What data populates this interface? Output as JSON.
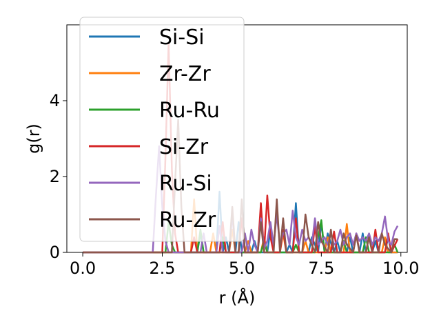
{
  "chart_data": {
    "type": "line",
    "xlabel": "r (Å)",
    "ylabel": "g(r)",
    "xlim": [
      -0.5,
      10.2
    ],
    "ylim": [
      0,
      6.0
    ],
    "xticks": [
      "0.0",
      "2.5",
      "5.0",
      "7.5",
      "10.0"
    ],
    "yticks": [
      "0",
      "2",
      "4"
    ],
    "legend_position": "upper-left",
    "grid": false,
    "series": [
      {
        "name": "Si-Si",
        "color": "#1f77b4",
        "x": [
          0,
          2.3,
          2.4,
          3.6,
          3.7,
          3.8,
          4.2,
          4.3,
          4.4,
          4.5,
          4.6,
          4.8,
          4.9,
          5.0,
          5.3,
          5.4,
          5.5,
          5.8,
          5.9,
          6.0,
          6.4,
          6.5,
          6.6,
          6.7,
          6.8,
          7.1,
          7.2,
          7.4,
          7.5,
          7.6,
          7.7,
          7.9,
          8.0,
          8.1,
          8.3,
          8.4,
          8.5,
          8.7,
          8.8,
          8.9,
          9.1,
          9.2,
          9.3,
          9.5,
          9.6,
          9.7,
          9.9
        ],
        "y": [
          0,
          0,
          0,
          0,
          0.5,
          0,
          0,
          1.6,
          0,
          0.4,
          0,
          0,
          0.8,
          0,
          0,
          0.3,
          0,
          0,
          0.6,
          0,
          0,
          0.2,
          0,
          1.3,
          0,
          0,
          0.4,
          0,
          0.8,
          0,
          0.5,
          0,
          0.3,
          0,
          0,
          0.4,
          0,
          0,
          0.5,
          0,
          0,
          0.3,
          0,
          0,
          0.4,
          0,
          0
        ]
      },
      {
        "name": "Zr-Zr",
        "color": "#ff7f0e",
        "x": [
          0,
          3.4,
          3.5,
          3.6,
          4.0,
          4.1,
          4.2,
          4.6,
          4.7,
          4.8,
          5.1,
          5.2,
          5.3,
          5.6,
          5.7,
          5.8,
          6.2,
          6.3,
          6.4,
          6.9,
          7.0,
          7.1,
          7.6,
          7.7,
          7.8,
          8.2,
          8.3,
          8.4,
          8.9,
          9.0,
          9.1,
          9.4,
          9.5,
          9.6,
          9.9
        ],
        "y": [
          0,
          0,
          1.4,
          0,
          0,
          0.5,
          0,
          0,
          0.6,
          0,
          0,
          0.3,
          0,
          0,
          0.4,
          0,
          0,
          0.5,
          0,
          0,
          0.3,
          0,
          0,
          0.4,
          0,
          0,
          0.75,
          0,
          0,
          0.45,
          0,
          0,
          0.4,
          0,
          0
        ]
      },
      {
        "name": "Ru-Ru",
        "color": "#2ca02c",
        "x": [
          0,
          2.6,
          2.7,
          2.8,
          2.9,
          3.6,
          3.7,
          3.8,
          4.3,
          4.4,
          4.5,
          5.6,
          5.7,
          5.8,
          6.6,
          6.7,
          6.8,
          7.3,
          7.4,
          7.5,
          7.6,
          8.1,
          8.2,
          8.3,
          8.8,
          8.9,
          9.0,
          9.7,
          9.8,
          9.9
        ],
        "y": [
          0,
          0,
          0.8,
          0.2,
          0,
          0,
          0.6,
          0,
          0,
          0.4,
          0,
          0,
          0.3,
          0,
          0,
          0.2,
          0,
          0,
          0.4,
          0.85,
          0,
          0,
          0.3,
          0,
          0,
          0.4,
          0,
          0,
          0.2,
          0
        ]
      },
      {
        "name": "Si-Zr",
        "color": "#d62728",
        "x": [
          0,
          2.5,
          2.6,
          2.7,
          2.8,
          2.9,
          3.0,
          3.4,
          3.5,
          3.6,
          4.3,
          4.4,
          4.5,
          4.9,
          5.0,
          5.1,
          5.5,
          5.6,
          5.7,
          5.8,
          5.9,
          6.0,
          6.2,
          6.3,
          6.4,
          6.6,
          6.7,
          6.8,
          7.2,
          7.3,
          7.4,
          7.8,
          7.9,
          8.0,
          8.5,
          8.6,
          8.7,
          9.1,
          9.2,
          9.3,
          9.5,
          9.6,
          9.7,
          9.9
        ],
        "y": [
          0,
          0,
          2.5,
          5.5,
          2.2,
          0.5,
          0,
          0,
          0.4,
          0,
          0,
          0.8,
          0,
          0,
          0.9,
          0,
          0,
          1.3,
          0,
          1.5,
          0.4,
          0,
          0,
          0.6,
          0,
          0,
          0.9,
          0,
          0,
          0.7,
          0,
          0,
          0.55,
          0,
          0,
          0.5,
          0,
          0,
          0.6,
          0,
          0,
          0.5,
          0,
          0.35
        ]
      },
      {
        "name": "Ru-Si",
        "color": "#9467bd",
        "x": [
          0,
          2.2,
          2.3,
          2.4,
          2.5,
          2.6,
          2.7,
          3.7,
          3.8,
          3.9,
          4.2,
          4.3,
          4.4,
          4.6,
          4.7,
          4.8,
          5.0,
          5.1,
          5.2,
          5.3,
          5.4,
          5.5,
          5.6,
          5.7,
          5.8,
          5.9,
          6.0,
          6.1,
          6.2,
          6.3,
          6.4,
          6.5,
          6.6,
          6.7,
          6.8,
          6.9,
          7.0,
          7.1,
          7.2,
          7.3,
          7.4,
          7.5,
          7.6,
          7.7,
          7.8,
          7.9,
          8.0,
          8.1,
          8.2,
          8.3,
          8.4,
          8.5,
          8.6,
          8.7,
          8.8,
          8.9,
          9.0,
          9.1,
          9.2,
          9.3,
          9.4,
          9.5,
          9.6,
          9.7,
          9.8,
          9.9
        ],
        "y": [
          0,
          0,
          1.5,
          2.8,
          1.2,
          0.3,
          0,
          0,
          0.5,
          0,
          0,
          0.7,
          0,
          0,
          1.0,
          0,
          0,
          0.5,
          0,
          0.6,
          0.2,
          0,
          0.9,
          0.1,
          0.3,
          0.8,
          0.2,
          1.0,
          0.2,
          0.5,
          0.6,
          0.2,
          1.1,
          0.4,
          0.2,
          0.6,
          0.3,
          0.4,
          0.2,
          0.9,
          0.2,
          0.3,
          0.4,
          0.2,
          0.5,
          0.2,
          0.3,
          0.6,
          0.2,
          0.4,
          0.5,
          0.2,
          0.5,
          0.3,
          0.4,
          0.3,
          0.5,
          0.2,
          0.4,
          0.3,
          0.5,
          0.95,
          0.3,
          0.2,
          0.55,
          0.7
        ]
      },
      {
        "name": "Ru-Zr",
        "color": "#8c564b",
        "x": [
          0,
          2.8,
          2.9,
          3.0,
          3.1,
          3.2,
          4.6,
          4.7,
          4.8,
          4.9,
          5.0,
          5.1,
          5.5,
          5.6,
          5.7,
          6.0,
          6.1,
          6.2,
          6.3,
          6.4,
          6.5,
          6.9,
          7.0,
          7.1,
          7.3,
          7.4,
          7.5,
          7.7,
          7.8,
          7.9,
          8.1,
          8.2,
          8.3,
          8.5,
          8.6,
          8.7,
          8.9,
          9.0,
          9.1,
          9.3,
          9.4,
          9.5,
          9.7,
          9.8,
          9.9
        ],
        "y": [
          0,
          0,
          1.8,
          3.5,
          1.2,
          0,
          0,
          1.2,
          0,
          0,
          1.4,
          0,
          0,
          0.8,
          0,
          0,
          1.4,
          0,
          0.9,
          0,
          0,
          0,
          1.0,
          0.4,
          0,
          0.8,
          0.3,
          0,
          0.6,
          0,
          0,
          0.5,
          0.2,
          0,
          0.45,
          0,
          0,
          0.4,
          0,
          0,
          0.5,
          0.2,
          0,
          0.35,
          0.35
        ]
      }
    ]
  }
}
